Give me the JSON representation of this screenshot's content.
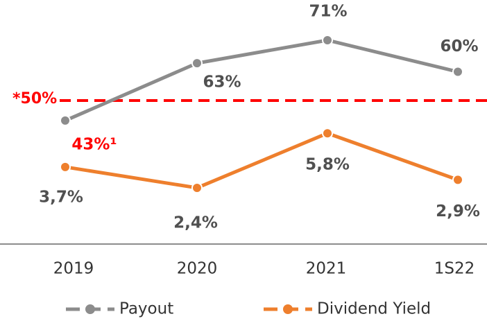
{
  "chart_data": {
    "type": "line",
    "categories": [
      "2019",
      "2020",
      "2021",
      "1S22"
    ],
    "series": [
      {
        "name": "Payout",
        "color": "#8c8c8c",
        "values": [
          43,
          63,
          71,
          60
        ],
        "value_labels": [
          "43%¹",
          "63%",
          "71%",
          "60%"
        ],
        "value_label_colors": [
          "#ff0000",
          "#505050",
          "#505050",
          "#505050"
        ]
      },
      {
        "name": "Dividend Yield",
        "color": "#ee7f2d",
        "axis": "y2",
        "values": [
          3.7,
          2.4,
          5.8,
          2.9
        ],
        "value_labels": [
          "3,7%",
          "2,4%",
          "5,8%",
          "2,9%"
        ]
      }
    ],
    "reference_line": {
      "value": 50,
      "label": "*50%",
      "color": "#ff0000"
    },
    "ylim": [
      0,
      85
    ],
    "y2lim": [
      -1.1,
      14.1
    ]
  }
}
